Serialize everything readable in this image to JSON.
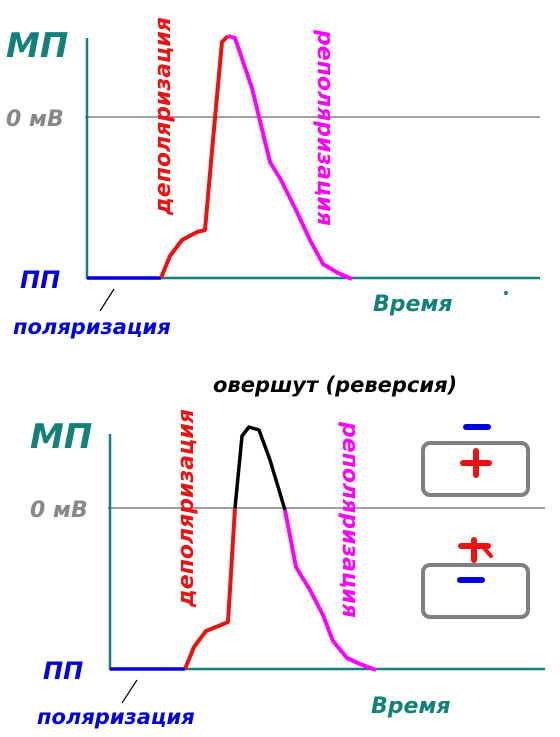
{
  "diagram_1": {
    "y_label": "МП",
    "zero_label": "0 мВ",
    "rest_label": "ПП",
    "polarization_label": "поляризация",
    "x_label": "Время",
    "depolarization_label": "деполяризация",
    "repolarization_label": "реполяризация"
  },
  "diagram_2": {
    "title": "овершут (реверсия)",
    "y_label": "МП",
    "zero_label": "0 мВ",
    "rest_label": "ПП",
    "polarization_label": "поляризация",
    "x_label": "Время",
    "depolarization_label": "деполяризация",
    "repolarization_label": "реполяризация",
    "membrane_boxes": [
      {
        "outside_sign": "−",
        "inside_sign": "+"
      },
      {
        "outside_sign": "+",
        "inside_sign": "−"
      }
    ]
  },
  "colors": {
    "axis": "#138079",
    "zero_line": "#808080",
    "polarization": "#0000e0",
    "depolarization": "#ee1111",
    "repolarization": "#ff00ff",
    "overshoot": "#000000",
    "box": "#808080"
  }
}
